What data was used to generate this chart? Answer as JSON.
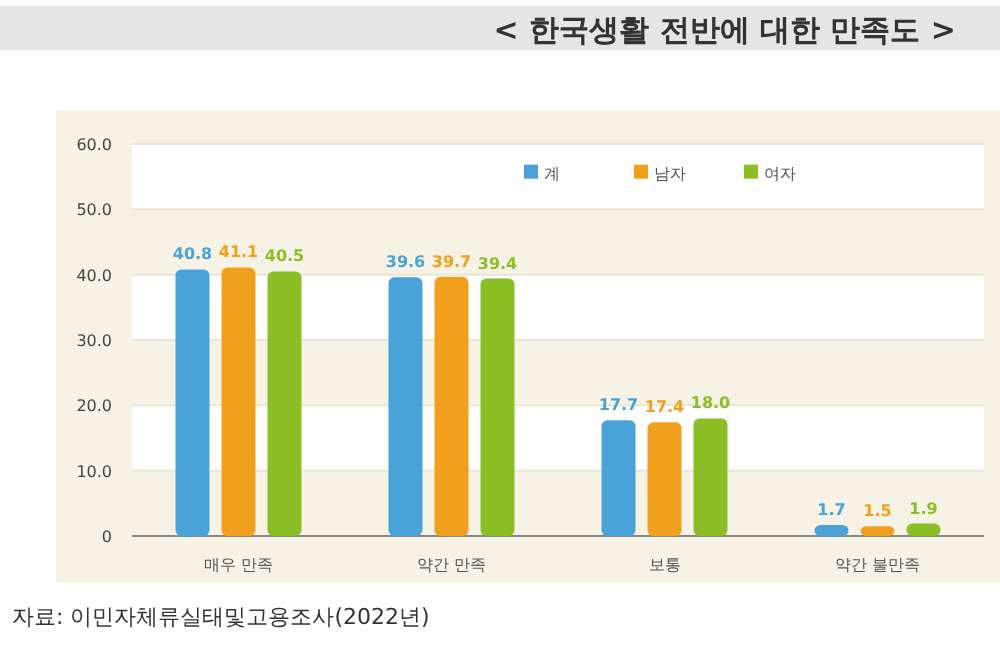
{
  "chart_data": {
    "type": "bar",
    "title": "< 한국생활 전반에 대한 만족도 >",
    "categories": [
      "매우 만족",
      "약간 만족",
      "보통",
      "약간 불만족"
    ],
    "series": [
      {
        "name": "계",
        "color": "#4aa3d8",
        "values": [
          40.8,
          39.6,
          17.7,
          1.7
        ],
        "value_labels": [
          "40.8",
          "39.6",
          "17.7",
          "1.7"
        ]
      },
      {
        "name": "남자",
        "color": "#f0a01c",
        "values": [
          41.1,
          39.7,
          17.4,
          1.5
        ],
        "value_labels": [
          "41.1",
          "39.7",
          "17.4",
          "1.5"
        ]
      },
      {
        "name": "여자",
        "color": "#8cbf26",
        "values": [
          40.5,
          39.4,
          18.0,
          1.9
        ],
        "value_labels": [
          "40.5",
          "39.4",
          "18.0",
          "1.9"
        ]
      }
    ],
    "ylim": [
      0,
      60
    ],
    "yticks": [
      {
        "value": 0,
        "label": "0"
      },
      {
        "value": 10,
        "label": "10.0"
      },
      {
        "value": 20,
        "label": "20.0"
      },
      {
        "value": 30,
        "label": "30.0"
      },
      {
        "value": 40,
        "label": "40.0"
      },
      {
        "value": 50,
        "label": "50.0"
      },
      {
        "value": 60,
        "label": "60.0"
      }
    ],
    "grid": "y",
    "legend": "top",
    "annotations": [
      "자료: 이민자체류실태및고용조사(2022년)"
    ]
  }
}
